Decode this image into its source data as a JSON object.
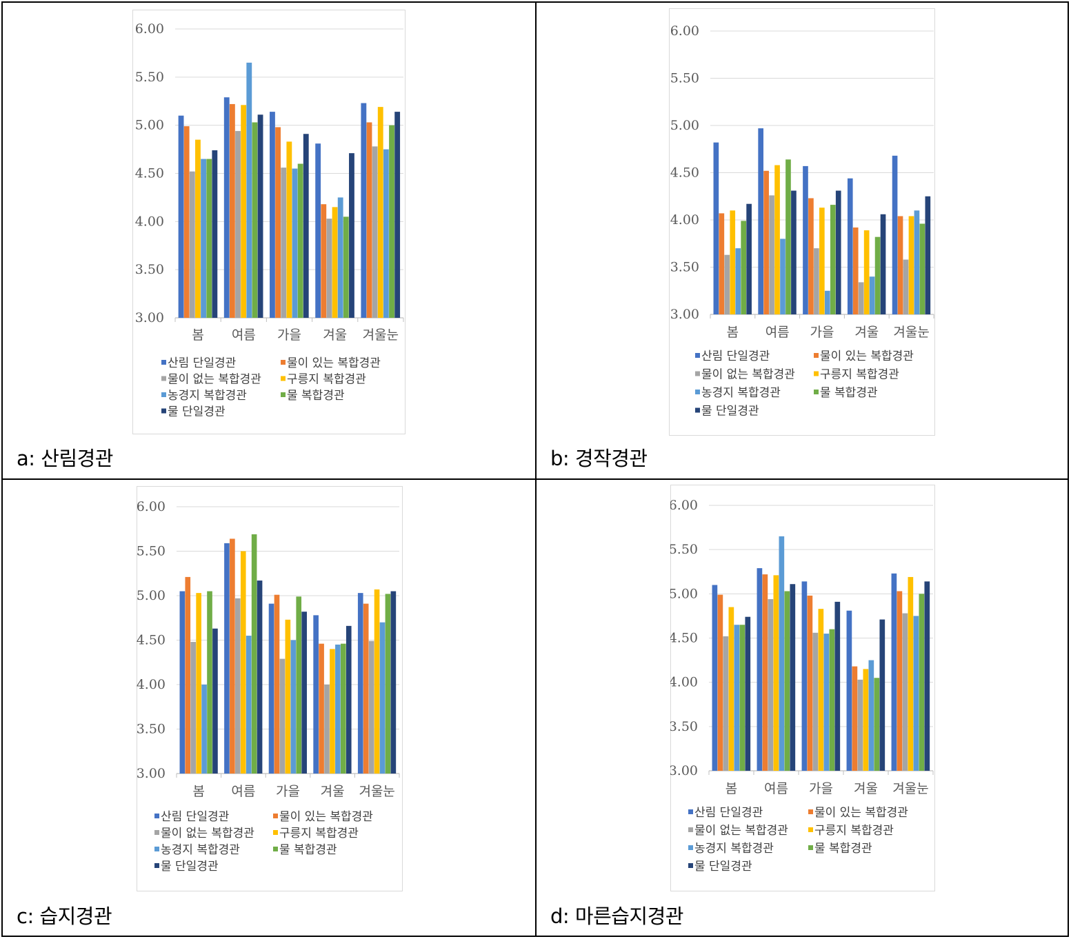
{
  "colors": {
    "산림 단일경관": "#4472C4",
    "물이 있는 복합경관": "#ED7D31",
    "물이 없는 복합경관": "#A5A5A5",
    "구릉지 복합경관": "#FFC000",
    "농경지 복합경관": "#5B9BD5",
    "물 복합경관": "#70AD47",
    "물 단일경관": "#264478"
  },
  "panels": [
    {
      "caption": "a:  산림경관"
    },
    {
      "caption": "b:  경작경관"
    },
    {
      "caption": "c:  습지경관"
    },
    {
      "caption": "d:  마른습지경관"
    }
  ],
  "chart_data": [
    {
      "type": "bar",
      "categories": [
        "봄",
        "여름",
        "가을",
        "겨울",
        "겨울눈"
      ],
      "ylim": [
        3.0,
        6.0
      ],
      "yticks": [
        "3.00",
        "3.50",
        "4.00",
        "4.50",
        "5.00",
        "5.50",
        "6.00"
      ],
      "legend_position": "bottom",
      "grid": true,
      "series": [
        {
          "name": "산림 단일경관",
          "values": [
            5.1,
            5.29,
            5.14,
            4.81,
            5.23
          ]
        },
        {
          "name": "물이 있는 복합경관",
          "values": [
            4.99,
            5.22,
            4.98,
            4.18,
            5.03
          ]
        },
        {
          "name": "물이 없는 복합경관",
          "values": [
            4.52,
            4.94,
            4.56,
            4.03,
            4.78
          ]
        },
        {
          "name": "구릉지 복합경관",
          "values": [
            4.85,
            5.21,
            4.83,
            4.15,
            5.19
          ]
        },
        {
          "name": "농경지 복합경관",
          "values": [
            4.65,
            5.65,
            4.55,
            4.25,
            4.75
          ]
        },
        {
          "name": "물 복합경관",
          "values": [
            4.65,
            5.03,
            4.6,
            4.05,
            5.0
          ]
        },
        {
          "name": "물 단일경관",
          "values": [
            4.74,
            5.11,
            4.91,
            4.71,
            5.14
          ]
        }
      ]
    },
    {
      "type": "bar",
      "categories": [
        "봄",
        "여름",
        "가을",
        "겨울",
        "겨울눈"
      ],
      "ylim": [
        3.0,
        6.0
      ],
      "yticks": [
        "3.00",
        "3.50",
        "4.00",
        "4.50",
        "5.00",
        "5.50",
        "6.00"
      ],
      "legend_position": "bottom",
      "grid": true,
      "series": [
        {
          "name": "산림 단일경관",
          "values": [
            4.82,
            4.97,
            4.57,
            4.44,
            4.68
          ]
        },
        {
          "name": "물이 있는 복합경관",
          "values": [
            4.07,
            4.52,
            4.23,
            3.92,
            4.04
          ]
        },
        {
          "name": "물이 없는 복합경관",
          "values": [
            3.63,
            4.26,
            3.7,
            3.34,
            3.58
          ]
        },
        {
          "name": "구릉지 복합경관",
          "values": [
            4.1,
            4.58,
            4.13,
            3.89,
            4.04
          ]
        },
        {
          "name": "농경지 복합경관",
          "values": [
            3.7,
            3.8,
            3.25,
            3.4,
            4.1
          ]
        },
        {
          "name": "물 복합경관",
          "values": [
            3.99,
            4.64,
            4.16,
            3.82,
            3.96
          ]
        },
        {
          "name": "물 단일경관",
          "values": [
            4.17,
            4.31,
            4.31,
            4.06,
            4.25
          ]
        }
      ]
    },
    {
      "type": "bar",
      "categories": [
        "봄",
        "여름",
        "가을",
        "겨울",
        "겨울눈"
      ],
      "ylim": [
        3.0,
        6.0
      ],
      "yticks": [
        "3.00",
        "3.50",
        "4.00",
        "4.50",
        "5.00",
        "5.50",
        "6.00"
      ],
      "legend_position": "bottom",
      "grid": true,
      "series": [
        {
          "name": "산림 단일경관",
          "values": [
            5.05,
            5.59,
            4.91,
            4.78,
            5.03
          ]
        },
        {
          "name": "물이 있는 복합경관",
          "values": [
            5.21,
            5.64,
            5.01,
            4.46,
            4.91
          ]
        },
        {
          "name": "물이 없는 복합경관",
          "values": [
            4.48,
            4.97,
            4.29,
            4.0,
            4.49
          ]
        },
        {
          "name": "구릉지 복합경관",
          "values": [
            5.03,
            5.5,
            4.73,
            4.4,
            5.07
          ]
        },
        {
          "name": "농경지 복합경관",
          "values": [
            4.0,
            4.55,
            4.5,
            4.45,
            4.7
          ]
        },
        {
          "name": "물 복합경관",
          "values": [
            5.05,
            5.69,
            4.99,
            4.46,
            5.02
          ]
        },
        {
          "name": "물 단일경관",
          "values": [
            4.63,
            5.17,
            4.82,
            4.66,
            5.05
          ]
        }
      ]
    },
    {
      "type": "bar",
      "categories": [
        "봄",
        "여름",
        "가을",
        "겨울",
        "겨울눈"
      ],
      "ylim": [
        3.0,
        6.0
      ],
      "yticks": [
        "3.00",
        "3.50",
        "4.00",
        "4.50",
        "5.00",
        "5.50",
        "6.00"
      ],
      "legend_position": "bottom",
      "grid": true,
      "series": [
        {
          "name": "산림 단일경관",
          "values": [
            5.1,
            5.29,
            5.14,
            4.81,
            5.23
          ]
        },
        {
          "name": "물이 있는 복합경관",
          "values": [
            4.99,
            5.22,
            4.98,
            4.18,
            5.03
          ]
        },
        {
          "name": "물이 없는 복합경관",
          "values": [
            4.52,
            4.94,
            4.56,
            4.03,
            4.78
          ]
        },
        {
          "name": "구릉지 복합경관",
          "values": [
            4.85,
            5.21,
            4.83,
            4.15,
            5.19
          ]
        },
        {
          "name": "농경지 복합경관",
          "values": [
            4.65,
            5.65,
            4.55,
            4.25,
            4.75
          ]
        },
        {
          "name": "물 복합경관",
          "values": [
            4.65,
            5.03,
            4.6,
            4.05,
            5.0
          ]
        },
        {
          "name": "물 단일경관",
          "values": [
            4.74,
            5.11,
            4.91,
            4.71,
            5.14
          ]
        }
      ]
    }
  ]
}
